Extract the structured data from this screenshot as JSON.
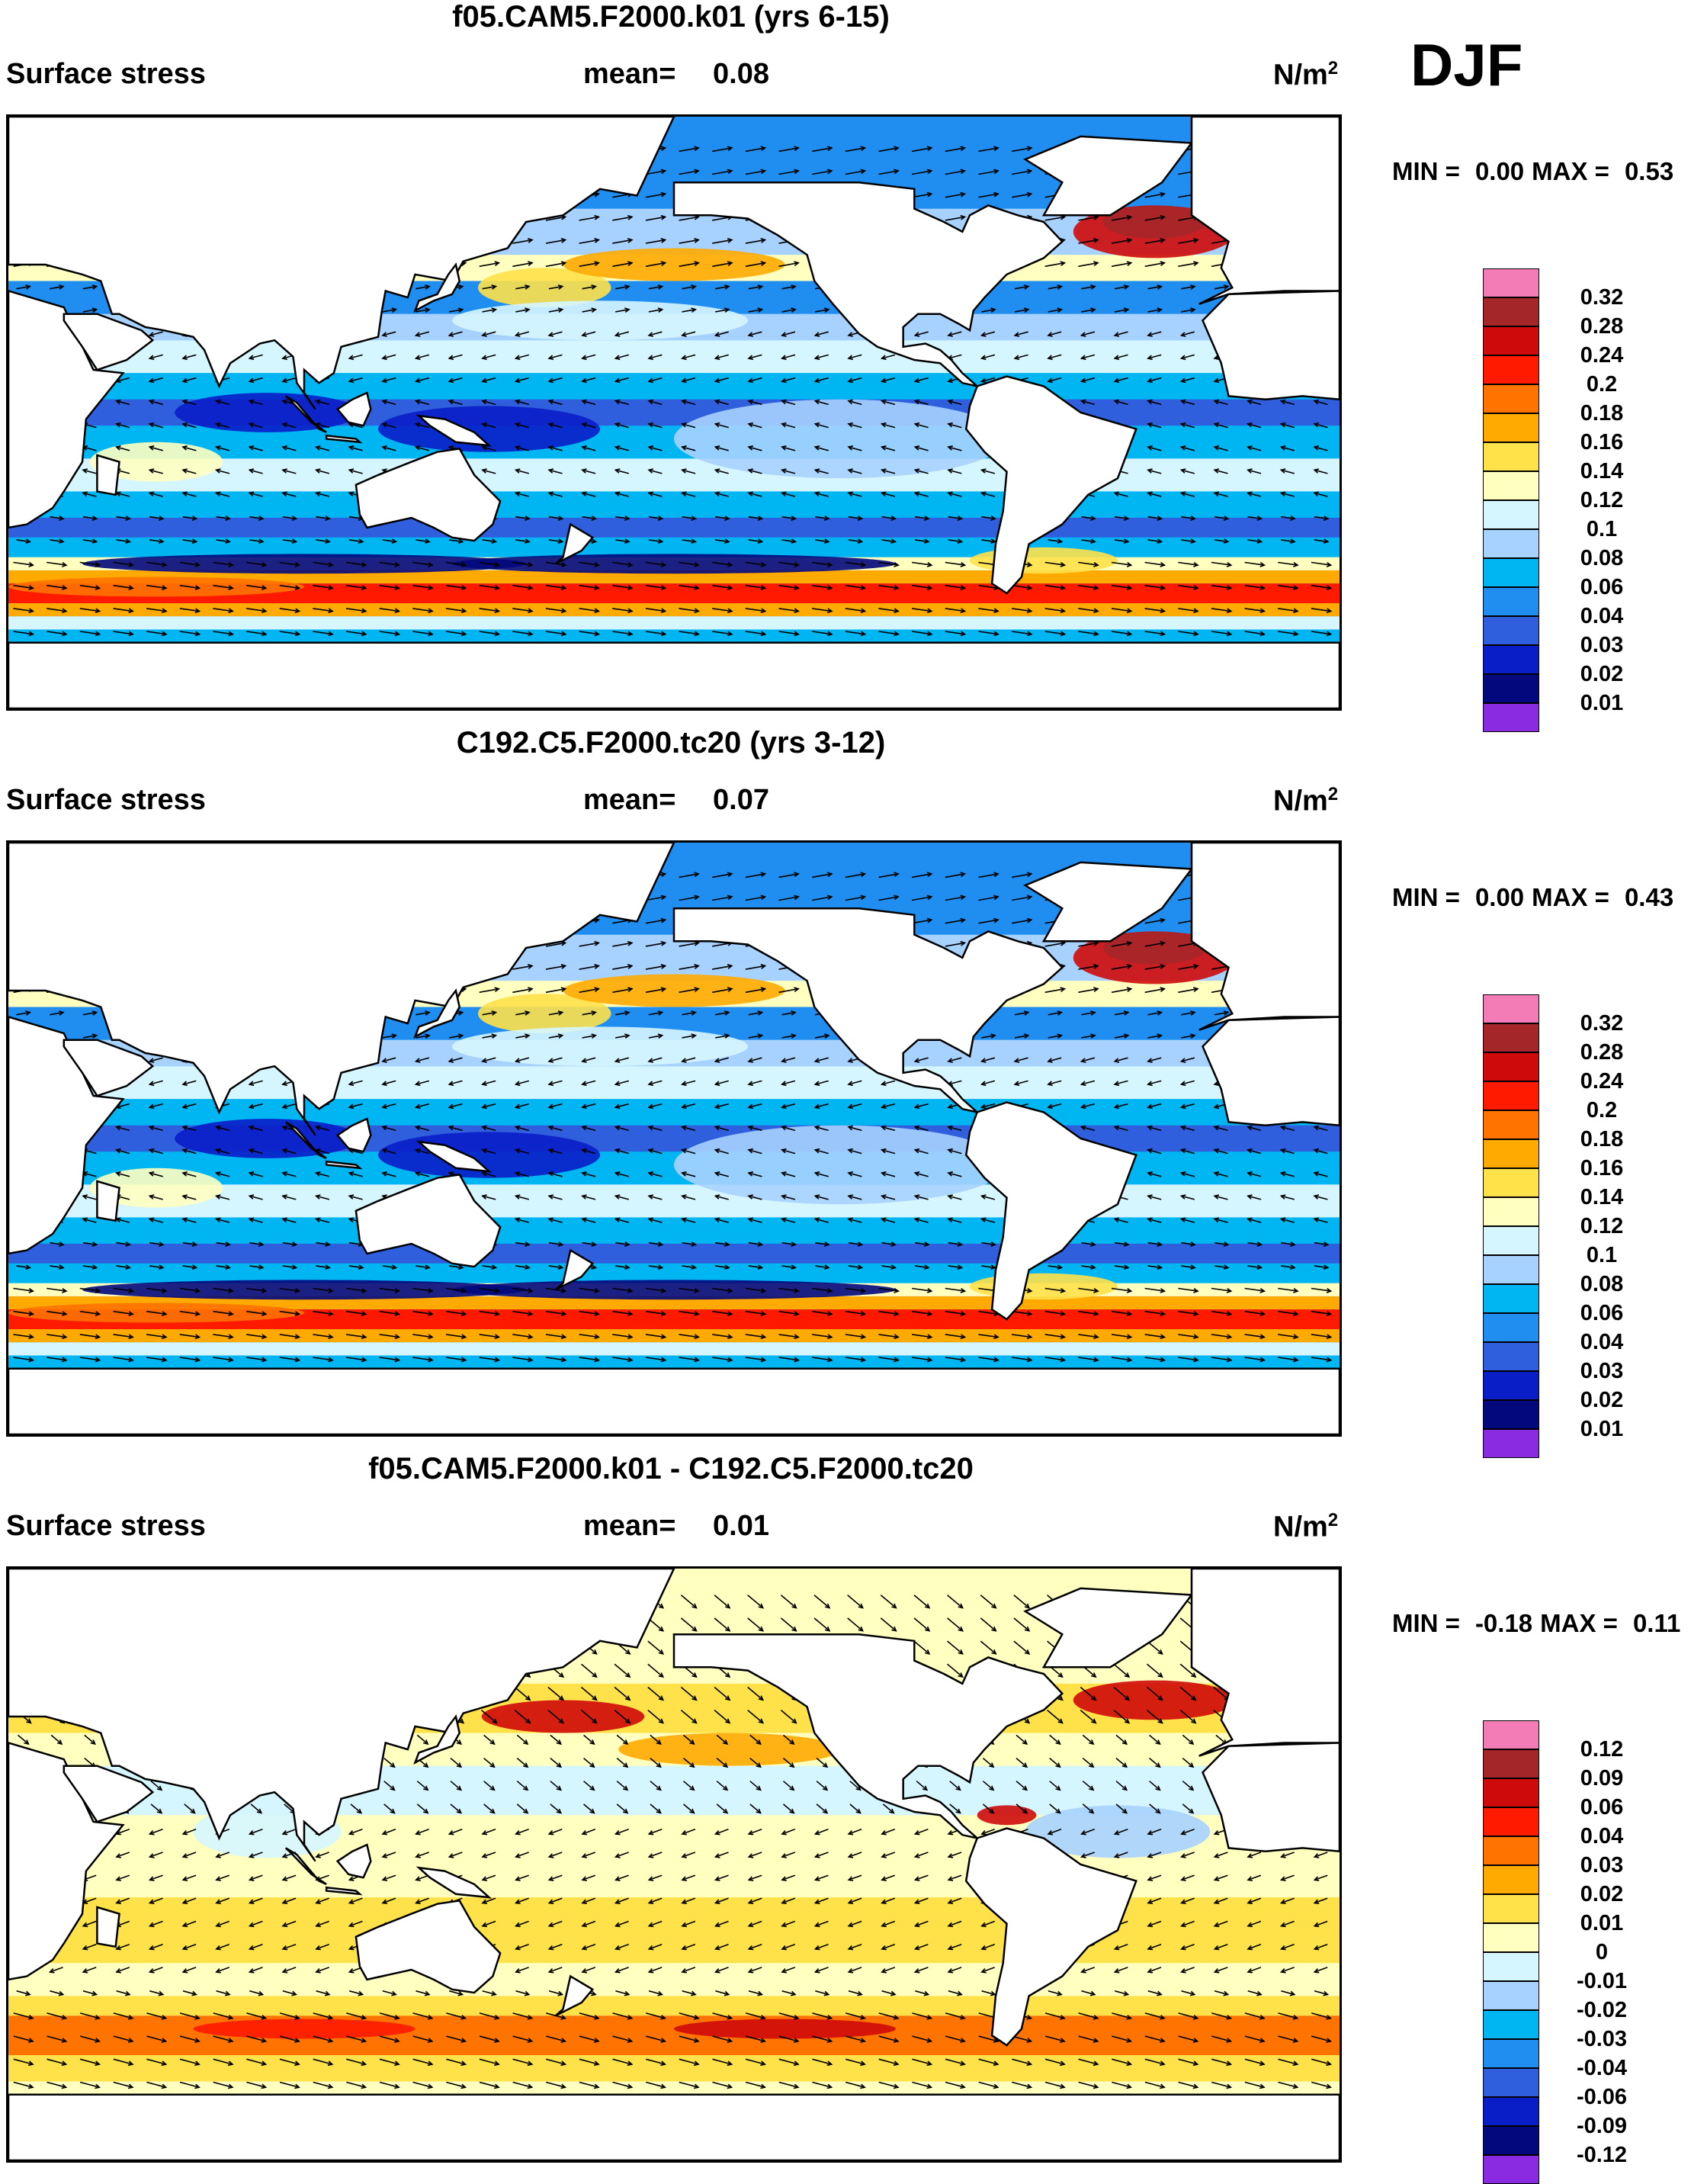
{
  "season": "DJF",
  "chart_data": [
    {
      "type": "heatmap",
      "title": "f05.CAM5.F2000.k01 (yrs 6-15)",
      "variable": "Surface stress",
      "mean_label": "mean=",
      "mean_value": "0.08",
      "units": "N/m",
      "units_exp": "2",
      "min_label": "MIN =",
      "min_value": "0.00",
      "max_label": "MAX =",
      "max_value": "0.53",
      "colorbar": {
        "levels": [
          "0.32",
          "0.28",
          "0.24",
          "0.2",
          "0.18",
          "0.16",
          "0.14",
          "0.12",
          "0.1",
          "0.08",
          "0.06",
          "0.04",
          "0.03",
          "0.02",
          "0.01"
        ],
        "colors": [
          "#f37bb6",
          "#a52628",
          "#cf0a0a",
          "#ff1a00",
          "#ff7300",
          "#ffaa00",
          "#ffe14a",
          "#ffffc0",
          "#d6f6ff",
          "#a7d2ff",
          "#00b6f2",
          "#1f8ef0",
          "#2f5fdc",
          "#0a1ec8",
          "#03087c",
          "#8a2be2"
        ]
      },
      "field": "mean",
      "vectors": true
    },
    {
      "type": "heatmap",
      "title": "C192.C5.F2000.tc20 (yrs 3-12)",
      "variable": "Surface stress",
      "mean_label": "mean=",
      "mean_value": "0.07",
      "units": "N/m",
      "units_exp": "2",
      "min_label": "MIN =",
      "min_value": "0.00",
      "max_label": "MAX =",
      "max_value": "0.43",
      "colorbar": {
        "levels": [
          "0.32",
          "0.28",
          "0.24",
          "0.2",
          "0.18",
          "0.16",
          "0.14",
          "0.12",
          "0.1",
          "0.08",
          "0.06",
          "0.04",
          "0.03",
          "0.02",
          "0.01"
        ],
        "colors": [
          "#f37bb6",
          "#a52628",
          "#cf0a0a",
          "#ff1a00",
          "#ff7300",
          "#ffaa00",
          "#ffe14a",
          "#ffffc0",
          "#d6f6ff",
          "#a7d2ff",
          "#00b6f2",
          "#1f8ef0",
          "#2f5fdc",
          "#0a1ec8",
          "#03087c",
          "#8a2be2"
        ]
      },
      "field": "mean",
      "vectors": true
    },
    {
      "type": "heatmap",
      "title": "f05.CAM5.F2000.k01 - C192.C5.F2000.tc20",
      "variable": "Surface stress",
      "mean_label": "mean=",
      "mean_value": "0.01",
      "units": "N/m",
      "units_exp": "2",
      "min_label": "MIN =",
      "min_value": "-0.18",
      "max_label": "MAX =",
      "max_value": "0.11",
      "colorbar": {
        "levels": [
          "0.12",
          "0.09",
          "0.06",
          "0.04",
          "0.03",
          "0.02",
          "0.01",
          "0",
          "-0.01",
          "-0.02",
          "-0.03",
          "-0.04",
          "-0.06",
          "-0.09",
          "-0.12"
        ],
        "colors": [
          "#f37bb6",
          "#a52628",
          "#cf0a0a",
          "#ff1a00",
          "#ff7300",
          "#ffaa00",
          "#ffe14a",
          "#ffffc0",
          "#d6f6ff",
          "#a7d2ff",
          "#00b6f2",
          "#1f8ef0",
          "#2f5fdc",
          "#0a1ec8",
          "#03087c",
          "#8a2be2"
        ]
      },
      "field": "difference",
      "vectors": true
    }
  ]
}
